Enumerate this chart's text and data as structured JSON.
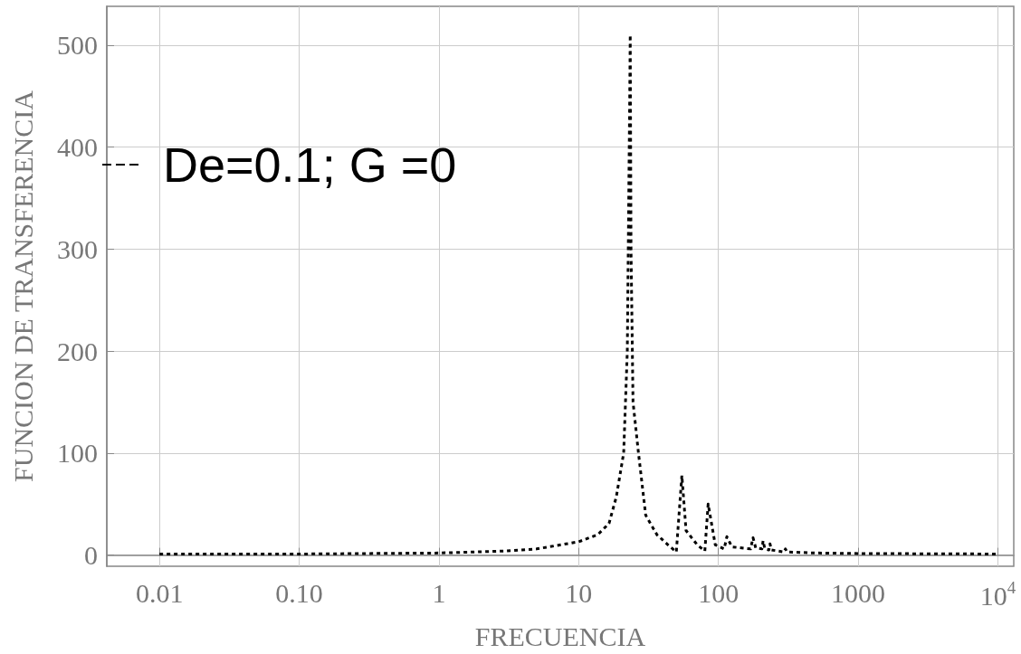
{
  "chart_data": {
    "type": "line",
    "xlabel": "FRECUENCIA",
    "ylabel": "FUNCION DE TRANSFERENCIA",
    "series": [
      {
        "name": "De=0.1; G =0",
        "color": "#000000",
        "x": [
          0.01,
          0.1,
          1,
          3,
          5,
          10,
          13.7,
          16.5,
          18.6,
          21,
          22.3,
          23.2,
          23.4,
          23.7,
          24.5,
          26.8,
          30.2,
          36.3,
          43.6,
          50,
          54.8,
          58.7,
          70.6,
          80,
          84.5,
          95,
          110,
          115,
          125,
          170,
          177,
          185,
          205,
          209,
          215,
          230,
          234,
          240,
          295,
          302,
          310,
          500,
          1000,
          10000
        ],
        "values": [
          1,
          1,
          2,
          4,
          6,
          13,
          20,
          31,
          57,
          100,
          200,
          450,
          510,
          300,
          150,
          100,
          39,
          20,
          10,
          3,
          78,
          24,
          10,
          4,
          50,
          10,
          6,
          18,
          8,
          6,
          17,
          7,
          6,
          14,
          6,
          5,
          11,
          5,
          3,
          6,
          3,
          2,
          1.5,
          1
        ]
      }
    ],
    "xlim": [
      0.0042,
      13000
    ],
    "ylim": [
      -11,
      538
    ],
    "xticks": [
      0.01,
      {
        "value": 0.1,
        "label": "0.10"
      },
      1,
      10,
      100,
      1000,
      {
        "value": 10000,
        "label": "10$^{4}$"
      }
    ],
    "yticks": [
      0,
      100,
      200,
      300,
      400,
      500
    ],
    "log": "x",
    "grid": true,
    "legend": "top left",
    "marker": "none",
    "line_style": "dashed"
  }
}
